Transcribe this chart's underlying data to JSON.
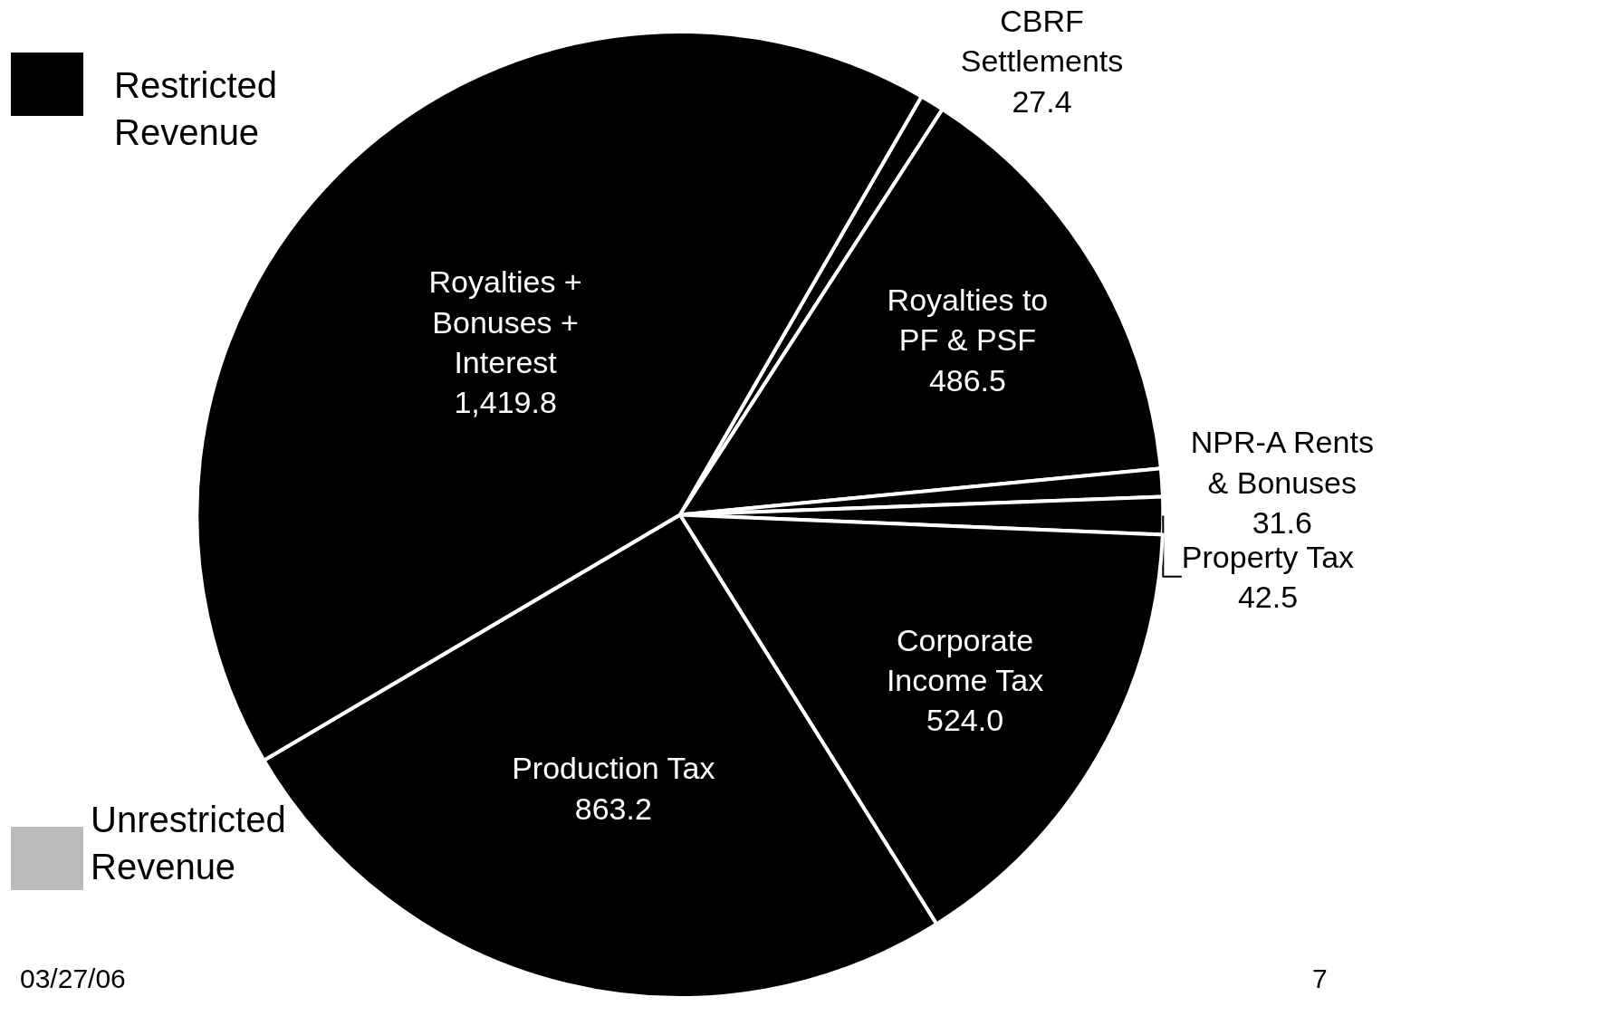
{
  "chart_data": {
    "type": "pie",
    "categories": [
      "CBRF Settlements",
      "Royalties to PF & PSF",
      "NPR-A Rents & Bonuses",
      "Property Tax",
      "Corporate Income Tax",
      "Production Tax",
      "Royalties + Bonuses + Interest"
    ],
    "values": [
      27.4,
      486.5,
      31.6,
      42.5,
      524.0,
      863.2,
      1419.8
    ],
    "value_labels": [
      "27.4",
      "486.5",
      "31.6",
      "42.5",
      "524.0",
      "863.2",
      "1,419.8"
    ],
    "colors": [
      "#000000",
      "#000000",
      "#000000",
      "#000000",
      "#000000",
      "#000000",
      "#000000"
    ],
    "annotations": [
      "Restricted Revenue",
      "Unrestricted Revenue",
      "03/27/06",
      "7"
    ]
  }
}
